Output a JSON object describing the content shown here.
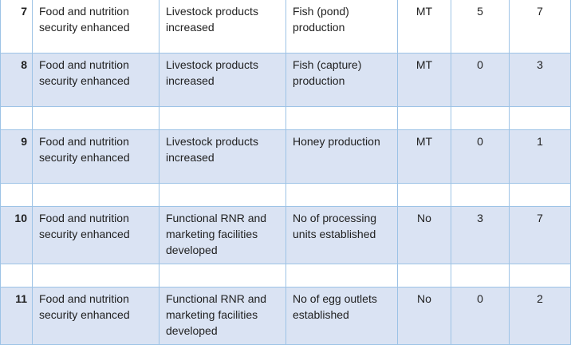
{
  "rows": [
    {
      "no": "7",
      "outcome": "Food and nutrition security enhanced",
      "output": "Livestock products increased",
      "indicator": "Fish (pond) production",
      "unit": "MT",
      "baseline": "5",
      "target": "7"
    },
    {
      "no": "8",
      "outcome": "Food and nutrition security enhanced",
      "output": "Livestock products increased",
      "indicator": "Fish (capture) production",
      "unit": "MT",
      "baseline": "0",
      "target": "3"
    },
    {
      "no": "9",
      "outcome": "Food and nutrition security enhanced",
      "output": "Livestock products increased",
      "indicator": "Honey production",
      "unit": "MT",
      "baseline": "0",
      "target": "1"
    },
    {
      "no": "10",
      "outcome": "Food and nutrition security enhanced",
      "output": "Functional RNR and marketing facilities developed",
      "indicator": "No of processing units established",
      "unit": "No",
      "baseline": "3",
      "target": "7"
    },
    {
      "no": "11",
      "outcome": "Food and nutrition security enhanced",
      "output": "Functional RNR and marketing facilities developed",
      "indicator": "No of egg outlets established",
      "unit": "No",
      "baseline": "0",
      "target": "2"
    }
  ]
}
